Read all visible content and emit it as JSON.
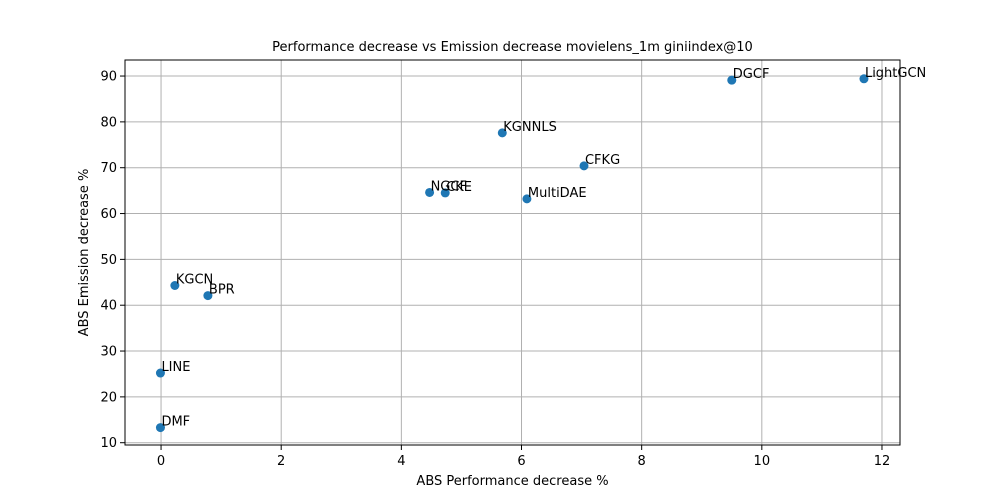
{
  "chart_data": {
    "type": "scatter",
    "title": "Performance decrease vs Emission decrease movielens_1m giniindex@10",
    "xlabel": "ABS Performance decrease %",
    "ylabel": "ABS Emission decrease %",
    "xlim": [
      -0.6,
      12.3
    ],
    "ylim": [
      9.5,
      93.5
    ],
    "xticks": [
      0,
      2,
      4,
      6,
      8,
      10,
      12
    ],
    "yticks": [
      10,
      20,
      30,
      40,
      50,
      60,
      70,
      80,
      90
    ],
    "grid": true,
    "marker_color": "#1f77b4",
    "points": [
      {
        "label": "LightGCN",
        "x": 11.7,
        "y": 89.4
      },
      {
        "label": "DGCF",
        "x": 9.5,
        "y": 89.1
      },
      {
        "label": "KGNNLS",
        "x": 5.68,
        "y": 77.6
      },
      {
        "label": "CFKG",
        "x": 7.04,
        "y": 70.4
      },
      {
        "label": "NGCF",
        "x": 4.47,
        "y": 64.6
      },
      {
        "label": "CKE",
        "x": 4.73,
        "y": 64.5
      },
      {
        "label": "MultiDAE",
        "x": 6.09,
        "y": 63.2
      },
      {
        "label": "KGCN",
        "x": 0.23,
        "y": 44.3
      },
      {
        "label": "BPR",
        "x": 0.78,
        "y": 42.1
      },
      {
        "label": "LINE",
        "x": -0.01,
        "y": 25.2
      },
      {
        "label": "DMF",
        "x": -0.01,
        "y": 13.3
      }
    ]
  }
}
